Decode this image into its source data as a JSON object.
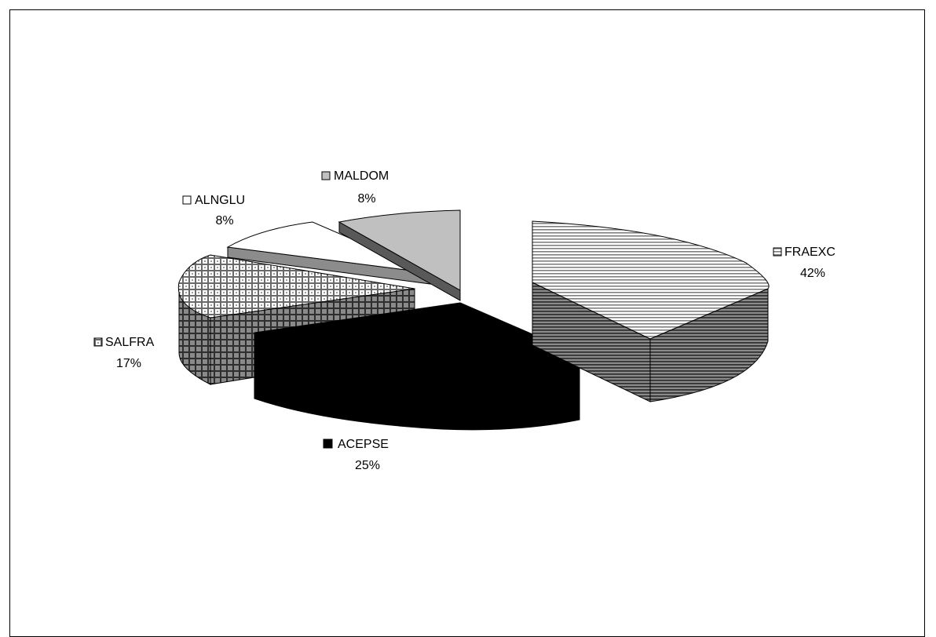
{
  "chart_data": {
    "type": "pie",
    "style": "3d-exploded",
    "legend": "none",
    "data_labels": "category-and-percent",
    "slices": [
      {
        "label": "FRAEXC",
        "percent_label": "42%",
        "value": 42,
        "pattern": "horizontal-lines",
        "marker": "⊟"
      },
      {
        "label": "ACEPSE",
        "percent_label": "25%",
        "value": 25,
        "pattern": "solid-black",
        "marker": "■"
      },
      {
        "label": "SALFRA",
        "percent_label": "17%",
        "value": 17,
        "pattern": "plaid",
        "marker": "⊞"
      },
      {
        "label": "ALNGLU",
        "percent_label": "8%",
        "value": 8,
        "pattern": "white",
        "marker": "□"
      },
      {
        "label": "MALDOM",
        "percent_label": "8%",
        "value": 8,
        "pattern": "light-gray",
        "marker": "▪"
      }
    ],
    "colors": {
      "black": "#000000",
      "dark_gray": "#555555",
      "mid_gray": "#808080",
      "light_gray": "#c0c0c0",
      "white": "#ffffff"
    }
  }
}
